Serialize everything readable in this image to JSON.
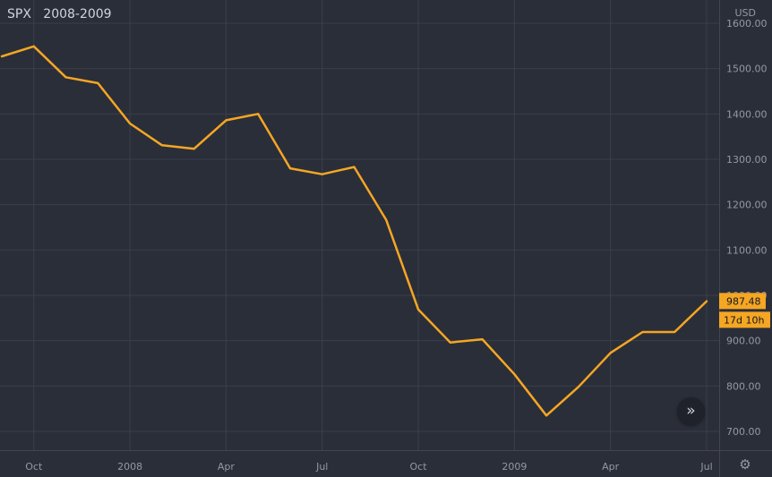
{
  "header": {
    "symbol": "SPX",
    "period": "2008-2009",
    "currency": "USD"
  },
  "colors": {
    "background": "#2a2e39",
    "line": "#f5a623",
    "grid": "#3b3f4b",
    "axis_text": "#9598a1"
  },
  "price_label": "987.48",
  "time_label": "17d 10h",
  "nav_button_icon": "double-chevron-right-icon",
  "settings_icon": "gear-icon",
  "chart_data": {
    "type": "line",
    "x": [
      "2007-09",
      "2007-10",
      "2007-11",
      "2007-12",
      "2008-01",
      "2008-02",
      "2008-03",
      "2008-04",
      "2008-05",
      "2008-06",
      "2008-07",
      "2008-08",
      "2008-09",
      "2008-10",
      "2008-11",
      "2008-12",
      "2009-01",
      "2009-02",
      "2009-03",
      "2009-04",
      "2009-05",
      "2009-06",
      "2009-07"
    ],
    "series": [
      {
        "values": [
          1527,
          1549,
          1481,
          1468,
          1379,
          1331,
          1323,
          1386,
          1400,
          1280,
          1267,
          1283,
          1166,
          969,
          896,
          903,
          826,
          735,
          798,
          873,
          919,
          919,
          987
        ]
      }
    ],
    "x_ticks": [
      {
        "date": "2007-10",
        "label": "Oct"
      },
      {
        "date": "2008-01",
        "label": "2008"
      },
      {
        "date": "2008-04",
        "label": "Apr"
      },
      {
        "date": "2008-07",
        "label": "Jul"
      },
      {
        "date": "2008-10",
        "label": "Oct"
      },
      {
        "date": "2009-01",
        "label": "2009"
      },
      {
        "date": "2009-04",
        "label": "Apr"
      },
      {
        "date": "2009-07",
        "label": "Jul"
      }
    ],
    "y_ticks": [
      "1600.00",
      "1500.00",
      "1400.00",
      "1300.00",
      "1200.00",
      "1100.00",
      "1000.00",
      "900.00",
      "800.00",
      "700.00"
    ],
    "ylim": [
      650,
      1700
    ],
    "grid": true,
    "last_value": 987.48
  }
}
